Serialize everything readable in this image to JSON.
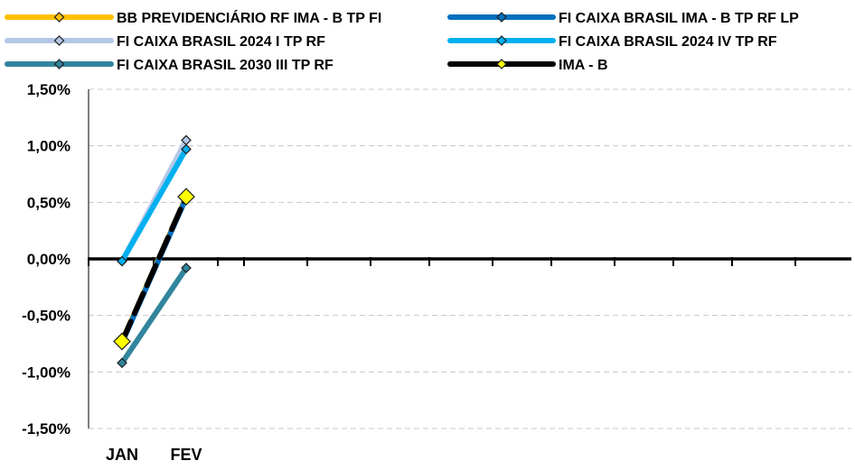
{
  "chart_data": {
    "type": "line",
    "categories": [
      "JAN",
      "FEV"
    ],
    "ylim": [
      -1.5,
      1.5
    ],
    "yticks": [
      1.5,
      1.0,
      0.5,
      0.0,
      -0.5,
      -1.0,
      -1.5
    ],
    "ytick_labels": [
      "1,50%",
      "1,00%",
      "0,50%",
      "0,00%",
      "-0,50%",
      "-1,00%",
      "-1,50%"
    ],
    "grid": "horizontal-dashed",
    "legend_position": "top",
    "series": [
      {
        "name": "BB PREVIDENCIÁRIO RF IMA - B TP FI",
        "values": [
          -0.73,
          0.55
        ],
        "color": "#FFC000"
      },
      {
        "name": "FI CAIXA BRASIL IMA - B TP RF LP",
        "values": [
          -0.74,
          0.54
        ],
        "color": "#0070C0"
      },
      {
        "name": "FI CAIXA BRASIL 2024 I TP RF",
        "values": [
          -0.02,
          1.05
        ],
        "color": "#B4C7E7"
      },
      {
        "name": "FI CAIXA BRASIL 2024 IV TP RF",
        "values": [
          -0.02,
          0.97
        ],
        "color": "#00B0F0"
      },
      {
        "name": "FI CAIXA BRASIL 2030 III TP RF",
        "values": [
          -0.92,
          -0.08
        ],
        "color": "#31859C"
      },
      {
        "name": "IMA - B",
        "values": [
          -0.73,
          0.55
        ],
        "color": "#000000",
        "marker_color": "#FFFF00"
      }
    ]
  }
}
